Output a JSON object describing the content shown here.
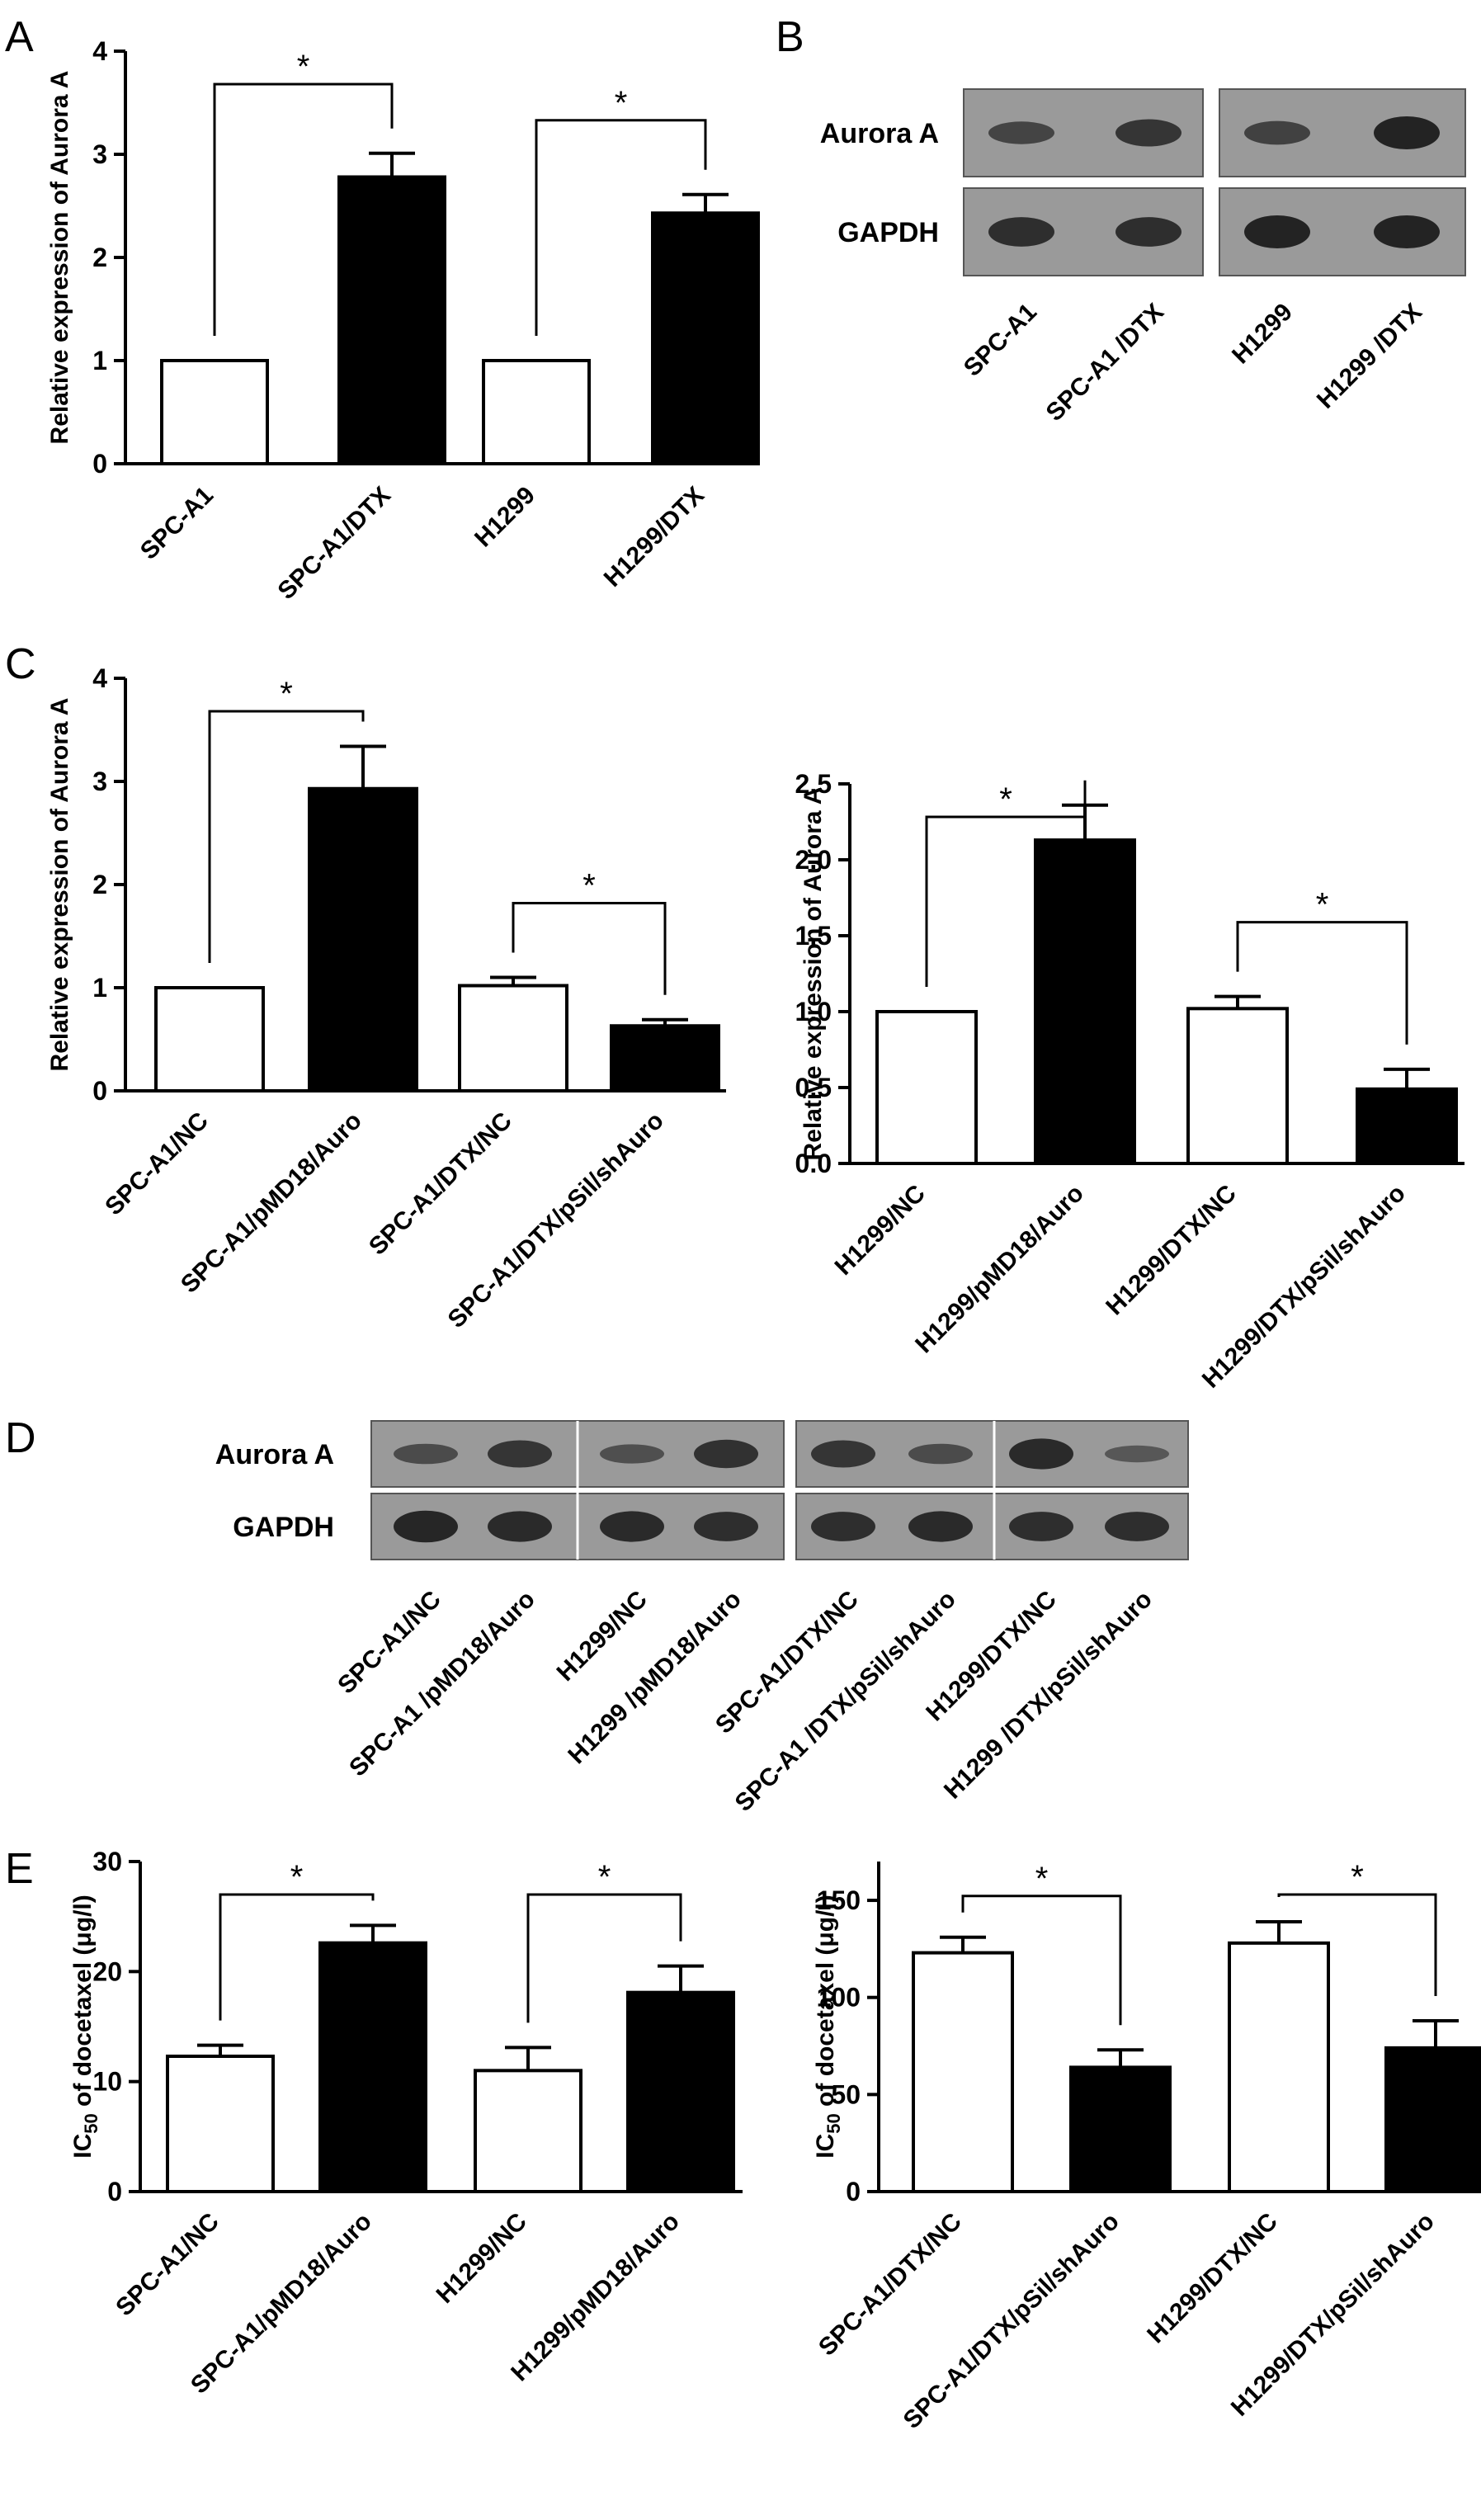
{
  "panel_letters": [
    "A",
    "B",
    "C",
    "D",
    "E"
  ],
  "colors": {
    "bar_control": "#ffffff",
    "bar_treatment": "#000000",
    "axis": "#000000",
    "blot_bg": "#9a9a9a",
    "band": "#1c1c1c"
  },
  "chart_data": [
    {
      "panel": "A",
      "type": "bar",
      "ylabel": "Relative expression of Aurora A",
      "ylim": [
        0,
        4
      ],
      "yticks": [
        "0",
        "1",
        "2",
        "3",
        "4"
      ],
      "categories": [
        "SPC-A1",
        "SPC-A1/DTX",
        "H1299",
        "H1299/DTX"
      ],
      "values": [
        1.0,
        2.78,
        1.0,
        2.43
      ],
      "errors": [
        0,
        0.23,
        0,
        0.18
      ],
      "fills": [
        "white",
        "black",
        "white",
        "black"
      ],
      "significance": [
        {
          "from": 0,
          "to": 1,
          "label": "*"
        },
        {
          "from": 2,
          "to": 3,
          "label": "*"
        }
      ]
    },
    {
      "panel": "C-left",
      "type": "bar",
      "ylabel": "Relative expression of Aurora A",
      "ylim": [
        0,
        4
      ],
      "yticks": [
        "0",
        "1",
        "2",
        "3",
        "4"
      ],
      "categories": [
        "SPC-A1/NC",
        "SPC-A1/pMD18/Auro",
        "SPC-A1/DTX/NC",
        "SPC-A1/DTX/pSil/shAuro"
      ],
      "values": [
        1.0,
        2.93,
        1.02,
        0.63
      ],
      "errors": [
        0,
        0.41,
        0.08,
        0.06
      ],
      "fills": [
        "white",
        "black",
        "white",
        "black"
      ],
      "significance": [
        {
          "from": 0,
          "to": 1,
          "label": "*"
        },
        {
          "from": 2,
          "to": 3,
          "label": "*"
        }
      ]
    },
    {
      "panel": "C-right",
      "type": "bar",
      "ylabel": "Relative expression of Aurora A",
      "ylim": [
        0,
        2.5
      ],
      "yticks": [
        "0.0",
        "0.5",
        "1.0",
        "1.5",
        "2.0",
        "2.5"
      ],
      "categories": [
        "H1299/NC",
        "H1299/pMD18/Auro",
        "H1299/DTX/NC",
        "H1299/DTX/pSil/shAuro"
      ],
      "values": [
        1.0,
        2.13,
        1.02,
        0.49
      ],
      "errors": [
        0,
        0.23,
        0.08,
        0.13
      ],
      "fills": [
        "white",
        "black",
        "white",
        "black"
      ],
      "significance": [
        {
          "from": 0,
          "to": 1,
          "label": "*"
        },
        {
          "from": 2,
          "to": 3,
          "label": "*"
        }
      ]
    },
    {
      "panel": "E-left",
      "type": "bar",
      "ylabel_main": "IC",
      "ylabel_sub": "50",
      "ylabel_rest": " of docetaxel (μg/l)",
      "ylim": [
        0,
        30
      ],
      "yticks": [
        "0",
        "10",
        "20",
        "30"
      ],
      "categories": [
        "SPC-A1/NC",
        "SPC-A1/pMD18/Auro",
        "H1299/NC",
        "H1299/pMD18/Auro"
      ],
      "values": [
        12.3,
        22.6,
        11.0,
        18.1
      ],
      "errors": [
        1.0,
        1.6,
        2.1,
        2.4
      ],
      "fills": [
        "white",
        "black",
        "white",
        "black"
      ],
      "significance": [
        {
          "from": 0,
          "to": 1,
          "label": "*"
        },
        {
          "from": 2,
          "to": 3,
          "label": "*"
        }
      ]
    },
    {
      "panel": "E-right",
      "type": "bar",
      "ylabel_main": "IC",
      "ylabel_sub": "50",
      "ylabel_rest": " of docetaxel (μg/l)",
      "ylim": [
        0,
        170
      ],
      "yticks": [
        "0",
        "50",
        "100",
        "150"
      ],
      "categories": [
        "SPC-A1/DTX/NC",
        "SPC-A1/DTX/pSil/shAuro",
        "H1299/DTX/NC",
        "H1299/DTX/pSil/shAuro"
      ],
      "values": [
        123,
        64,
        128,
        74
      ],
      "errors": [
        8,
        9,
        11,
        14
      ],
      "fills": [
        "white",
        "black",
        "white",
        "black"
      ],
      "significance": [
        {
          "from": 0,
          "to": 1,
          "label": "*"
        },
        {
          "from": 2,
          "to": 3,
          "label": "*"
        }
      ]
    }
  ],
  "blot_B": {
    "rows": [
      "Aurora A",
      "GAPDH"
    ],
    "lanes": [
      "SPC-A1",
      "SPC-A1 /DTX",
      "H1299",
      "H1299 /DTX"
    ],
    "band_intensity": {
      "Aurora A": [
        0.55,
        0.75,
        0.6,
        1.0
      ],
      "GAPDH": [
        0.85,
        0.85,
        1.0,
        1.0
      ]
    }
  },
  "blot_D": {
    "rows": [
      "Aurora A",
      "GAPDH"
    ],
    "lanes": [
      "SPC-A1/NC",
      "SPC-A1 /pMD18/Auro",
      "H1299/NC",
      "H1299 /pMD18/Auro",
      "SPC-A1/DTX/NC",
      "SPC-A1 /DTX/pSil/shAuro",
      "H1299/DTX/NC",
      "H1299 /DTX/pSil/shAuro"
    ],
    "band_intensity": {
      "Aurora A": [
        0.45,
        0.75,
        0.4,
        0.8,
        0.75,
        0.45,
        0.9,
        0.3
      ],
      "GAPDH": [
        0.95,
        0.9,
        0.9,
        0.85,
        0.85,
        0.9,
        0.85,
        0.85
      ]
    }
  }
}
